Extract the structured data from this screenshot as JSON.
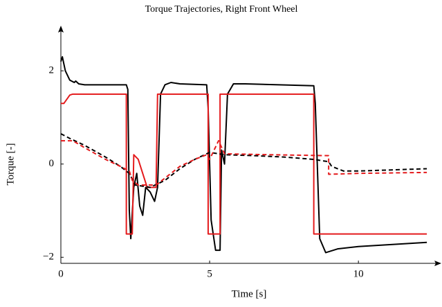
{
  "chart_data": {
    "type": "line",
    "title": "Torque Trajectories, Right Front Wheel",
    "xlabel": "Time [s]",
    "ylabel": "Torque [-]",
    "xlim": [
      0,
      12.6
    ],
    "ylim": [
      -2.13,
      2.85
    ],
    "xticks": [
      0,
      5,
      10
    ],
    "yticks": [
      {
        "value": -2,
        "label": "−2"
      },
      0,
      2
    ],
    "series": [
      {
        "color": "#000000",
        "dash": false,
        "x": [
          0,
          0.05,
          0.15,
          0.3,
          0.45,
          0.5,
          0.6,
          0.8,
          2.2,
          2.25,
          2.3,
          2.35,
          2.45,
          2.55,
          2.65,
          2.75,
          2.85,
          3.0,
          3.15,
          3.25,
          3.35,
          3.5,
          3.7,
          4.0,
          4.9,
          4.95,
          5.05,
          5.2,
          5.35,
          5.4,
          5.5,
          5.6,
          5.8,
          6.2,
          8.5,
          8.55,
          8.7,
          8.9,
          9.3,
          10,
          12.3
        ],
        "values": [
          2.2,
          2.3,
          2.0,
          1.8,
          1.75,
          1.78,
          1.72,
          1.7,
          1.7,
          1.6,
          -1.0,
          -1.6,
          -0.5,
          -0.2,
          -0.9,
          -1.1,
          -0.5,
          -0.6,
          -0.8,
          -0.5,
          1.5,
          1.7,
          1.75,
          1.72,
          1.7,
          1.2,
          -1.2,
          -1.85,
          -1.85,
          0.3,
          0.0,
          1.5,
          1.72,
          1.72,
          1.68,
          1.3,
          -1.6,
          -1.9,
          -1.82,
          -1.77,
          -1.68
        ]
      },
      {
        "color": "#e41a1c",
        "dash": false,
        "x": [
          0,
          0.1,
          0.3,
          0.4,
          2.2,
          2.2,
          2.4,
          2.45,
          2.6,
          2.9,
          3.2,
          3.25,
          4.95,
          4.95,
          5.35,
          5.35,
          8.5,
          8.5,
          12.3
        ],
        "values": [
          1.3,
          1.3,
          1.48,
          1.5,
          1.5,
          -1.5,
          -1.5,
          0.2,
          0.1,
          -0.5,
          -0.5,
          1.5,
          1.5,
          -1.5,
          -1.5,
          1.5,
          1.5,
          -1.5,
          -1.5
        ]
      },
      {
        "color": "#000000",
        "dash": true,
        "x": [
          0,
          0.3,
          0.8,
          1.5,
          2.0,
          2.3,
          2.5,
          3.0,
          3.5,
          4.0,
          4.5,
          5.0,
          5.5,
          6.5,
          7.5,
          8.5,
          9.0,
          9.1,
          9.5,
          10,
          12.3
        ],
        "values": [
          0.65,
          0.55,
          0.4,
          0.15,
          -0.05,
          -0.2,
          -0.45,
          -0.5,
          -0.35,
          -0.1,
          0.1,
          0.25,
          0.2,
          0.18,
          0.15,
          0.1,
          0.05,
          -0.05,
          -0.15,
          -0.15,
          -0.1
        ]
      },
      {
        "color": "#e41a1c",
        "dash": true,
        "x": [
          0,
          0.4,
          0.8,
          1.5,
          2.0,
          2.3,
          2.4,
          2.6,
          3.2,
          3.5,
          4.0,
          4.5,
          4.9,
          5.0,
          5.3,
          5.5,
          7.0,
          9.0,
          9.0,
          10,
          12.3
        ],
        "values": [
          0.5,
          0.5,
          0.35,
          0.1,
          -0.05,
          -0.15,
          -0.35,
          -0.45,
          -0.45,
          -0.3,
          -0.05,
          0.1,
          0.2,
          0.1,
          0.5,
          0.22,
          0.2,
          0.18,
          -0.22,
          -0.2,
          -0.18
        ]
      }
    ]
  }
}
